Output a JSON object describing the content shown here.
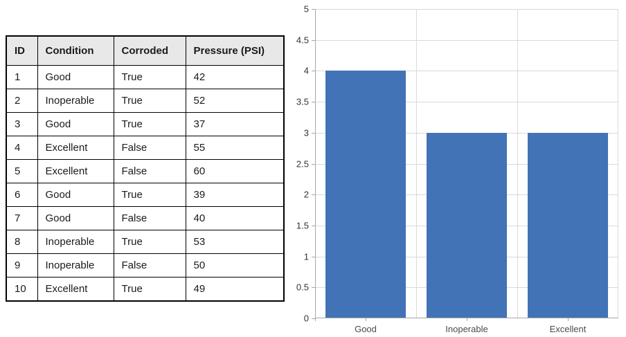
{
  "table": {
    "columns": [
      "ID",
      "Condition",
      "Corroded",
      "Pressure (PSI)"
    ],
    "rows": [
      [
        "1",
        "Good",
        "True",
        "42"
      ],
      [
        "2",
        "Inoperable",
        "True",
        "52"
      ],
      [
        "3",
        "Good",
        "True",
        "37"
      ],
      [
        "4",
        "Excellent",
        "False",
        "55"
      ],
      [
        "5",
        "Excellent",
        "False",
        "60"
      ],
      [
        "6",
        "Good",
        "True",
        "39"
      ],
      [
        "7",
        "Good",
        "False",
        "40"
      ],
      [
        "8",
        "Inoperable",
        "True",
        "53"
      ],
      [
        "9",
        "Inoperable",
        "False",
        "50"
      ],
      [
        "10",
        "Excellent",
        "True",
        "49"
      ]
    ]
  },
  "chart_data": {
    "type": "bar",
    "categories": [
      "Good",
      "Inoperable",
      "Excellent"
    ],
    "values": [
      4,
      3,
      3
    ],
    "title": "",
    "xlabel": "",
    "ylabel": "",
    "ylim": [
      0,
      5
    ],
    "ytick_step": 0.5,
    "yticks": [
      "0",
      "0.5",
      "1",
      "1.5",
      "2",
      "2.5",
      "3",
      "3.5",
      "4",
      "4.5",
      "5"
    ],
    "grid": true,
    "legend": "none",
    "bar_color": "#4273B6",
    "gridline_color": "#D9D9D9",
    "axis_color": "#A6A6A6",
    "ytick_label_color": "#333333",
    "xtick_label_color": "#4A4A4A"
  },
  "colors": {
    "table_header_bg": "#E8E8E8",
    "table_border": "#000000",
    "background": "#FFFFFF"
  }
}
